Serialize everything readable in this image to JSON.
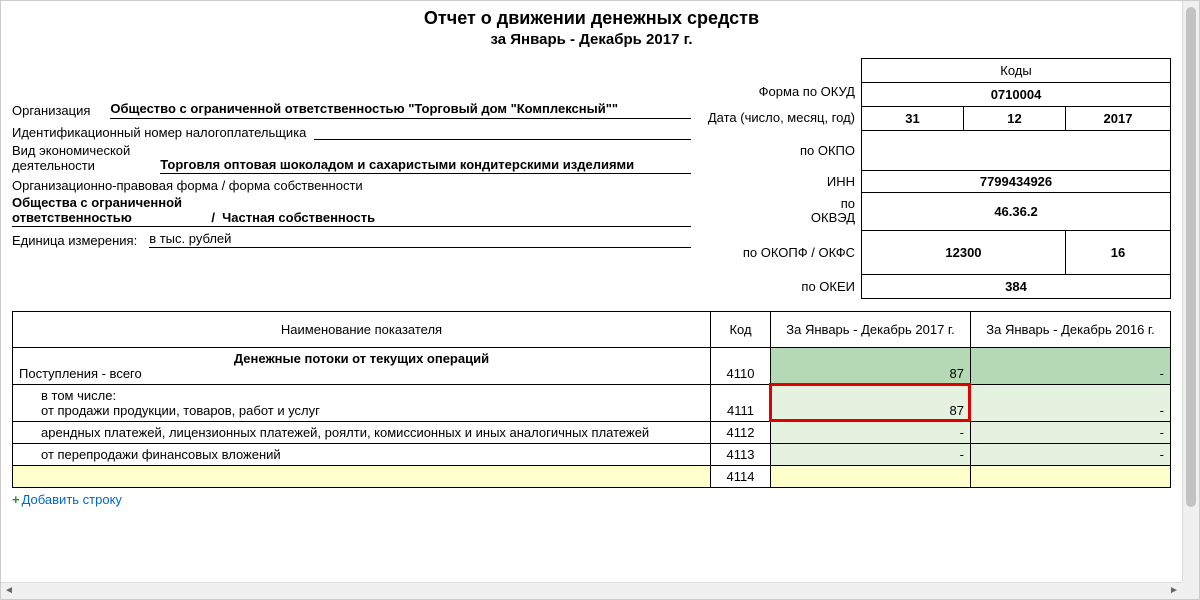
{
  "title": "Отчет о движении денежных средств",
  "subtitle": "за Январь - Декабрь 2017 г.",
  "labels": {
    "form_okud": "Форма по ОКУД",
    "date": "Дата (число, месяц, год)",
    "org": "Организация",
    "okpo": "по ОКПО",
    "inn_label": "Идентификационный номер налогоплательщика",
    "inn_side": "ИНН",
    "activity": "Вид экономической деятельности",
    "okved": "по ОКВЭД",
    "legal_form": "Организационно-правовая форма / форма собственности",
    "okopf_okfs": "по ОКОПФ / ОКФС",
    "unit": "Единица измерения:",
    "okei": "по ОКЕИ",
    "codes_hdr": "Коды"
  },
  "org_name": "Общество с ограниченной ответственностью \"Торговый дом \"Комплексный\"\"",
  "inn": "7799434926",
  "activity_text": "Торговля оптовая шоколадом и сахаристыми кондитерскими изделиями",
  "okved": "46.36.2",
  "legal_form_text": "Общества с ограниченной ответственностью",
  "ownership_text": "Частная собственность",
  "okopf": "12300",
  "okfs": "16",
  "unit_text": "в тыс. рублей",
  "okei": "384",
  "okud": "0710004",
  "date_parts": {
    "d": "31",
    "m": "12",
    "y": "2017"
  },
  "table": {
    "columns": {
      "name": "Наименование показателя",
      "code": "Код",
      "p1": "За Январь - Декабрь 2017 г.",
      "p2": "За Январь - Декабрь 2016 г."
    },
    "section": "Денежные потоки от текущих операций",
    "rows": [
      {
        "name": "Поступления - всего",
        "code": "4110",
        "p1": "87",
        "p2": "-",
        "bg1": "bg-green-dark",
        "bg2": "bg-green-dark"
      },
      {
        "name_top": "в том числе:",
        "name": "от продажи продукции, товаров, работ и услуг",
        "code": "4111",
        "p1": "87",
        "p2": "-",
        "bg1": "bg-green-light",
        "bg2": "bg-green-light",
        "highlight": true,
        "two": true
      },
      {
        "name": "арендных платежей, лицензионных платежей, роялти, комиссионных и иных аналогичных платежей",
        "code": "4112",
        "p1": "-",
        "p2": "-",
        "bg1": "bg-green-light",
        "bg2": "bg-green-light"
      },
      {
        "name": "от перепродажи финансовых вложений",
        "code": "4113",
        "p1": "-",
        "p2": "-",
        "bg1": "bg-green-light",
        "bg2": "bg-green-light"
      },
      {
        "name": "",
        "code": "4114",
        "p1": "",
        "p2": "",
        "bg1": "bg-yellow",
        "bg2": "bg-yellow",
        "nameyellow": true
      }
    ]
  },
  "add_row": "Добавить строку",
  "colors": {
    "green_dark": "#b5d8b5",
    "green_light": "#e6f2e0",
    "yellow": "#ffffcc",
    "highlight": "#e00000",
    "link": "#0066cc"
  }
}
